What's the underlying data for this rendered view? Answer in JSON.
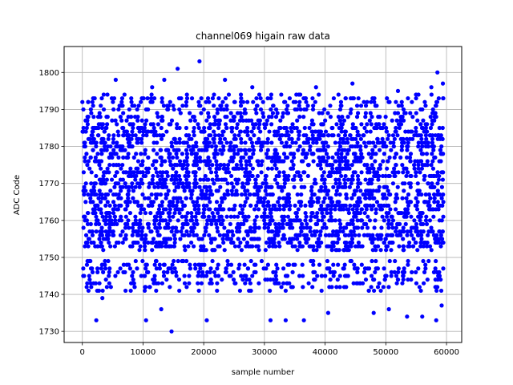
{
  "chart_data": {
    "type": "scatter",
    "title": "channel069 higain raw data",
    "xlabel": "sample number",
    "ylabel": "ADC Code",
    "xlim": [
      -3000,
      62500
    ],
    "ylim": [
      1727,
      1807
    ],
    "xticks": [
      0,
      10000,
      20000,
      30000,
      40000,
      50000,
      60000
    ],
    "yticks": [
      1730,
      1740,
      1750,
      1760,
      1770,
      1780,
      1790,
      1800
    ],
    "grid": true,
    "marker_color": "#0000ff",
    "sample_range": [
      0,
      59500
    ],
    "band": {
      "dense_min": 1745,
      "dense_max": 1789
    },
    "outliers": [
      {
        "x": 2300,
        "y": 1733
      },
      {
        "x": 3300,
        "y": 1739
      },
      {
        "x": 5500,
        "y": 1798
      },
      {
        "x": 10500,
        "y": 1733
      },
      {
        "x": 11500,
        "y": 1796
      },
      {
        "x": 13000,
        "y": 1736
      },
      {
        "x": 13500,
        "y": 1798
      },
      {
        "x": 14700,
        "y": 1730
      },
      {
        "x": 15700,
        "y": 1801
      },
      {
        "x": 19300,
        "y": 1803
      },
      {
        "x": 20500,
        "y": 1733
      },
      {
        "x": 23500,
        "y": 1798
      },
      {
        "x": 28000,
        "y": 1796
      },
      {
        "x": 31000,
        "y": 1733
      },
      {
        "x": 33500,
        "y": 1733
      },
      {
        "x": 36500,
        "y": 1733
      },
      {
        "x": 38500,
        "y": 1796
      },
      {
        "x": 40500,
        "y": 1735
      },
      {
        "x": 44500,
        "y": 1797
      },
      {
        "x": 48000,
        "y": 1735
      },
      {
        "x": 50500,
        "y": 1736
      },
      {
        "x": 52000,
        "y": 1795
      },
      {
        "x": 53500,
        "y": 1734
      },
      {
        "x": 56000,
        "y": 1734
      },
      {
        "x": 57500,
        "y": 1796
      },
      {
        "x": 58300,
        "y": 1733
      },
      {
        "x": 58500,
        "y": 1800
      },
      {
        "x": 59200,
        "y": 1737
      },
      {
        "x": 59400,
        "y": 1797
      }
    ]
  }
}
